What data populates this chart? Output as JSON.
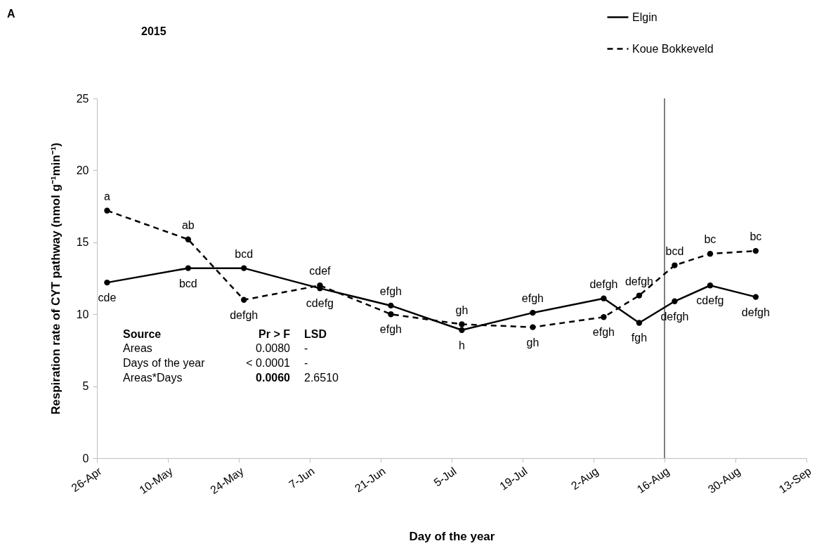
{
  "chart_data": {
    "type": "line",
    "title": "2015",
    "xlabel": "Day of the year",
    "ylabel": "Respiration rate of CYT pathway (nmol g⁻¹min⁻¹)",
    "x": [
      "2015-04-28",
      "2015-05-14",
      "2015-05-25",
      "2015-06-09",
      "2015-06-23",
      "2015-07-07",
      "2015-07-21",
      "2015-08-04",
      "2015-08-11",
      "2015-08-18",
      "2015-08-25",
      "2015-09-03"
    ],
    "series": [
      {
        "name": "Elgin",
        "color": "#000000",
        "line_style": "solid",
        "values": [
          12.2,
          13.2,
          13.2,
          11.8,
          10.6,
          8.9,
          10.1,
          11.1,
          9.4,
          10.9,
          12.0,
          11.2
        ]
      },
      {
        "name": "Koue Bokkeveld",
        "color": "#000000",
        "line_style": "dashed",
        "values": [
          17.2,
          15.2,
          11.0,
          12.0,
          10.0,
          9.3,
          9.1,
          9.8,
          11.3,
          13.4,
          14.2,
          14.4
        ]
      }
    ],
    "marker": "circle",
    "legend": "top right",
    "grid": false,
    "ylim": [
      0,
      25
    ],
    "yticks": [
      0,
      5,
      10,
      15,
      20,
      25
    ],
    "xlim": [
      "2015-04-26",
      "2015-09-13"
    ],
    "xticks": [
      {
        "value": "2015-04-26",
        "label": "26-Apr"
      },
      {
        "value": "2015-05-10",
        "label": "10-May"
      },
      {
        "value": "2015-05-24",
        "label": "24-May"
      },
      {
        "value": "2015-06-07",
        "label": "7-Jun"
      },
      {
        "value": "2015-06-21",
        "label": "21-Jun"
      },
      {
        "value": "2015-07-05",
        "label": "5-Jul"
      },
      {
        "value": "2015-07-19",
        "label": "19-Jul"
      },
      {
        "value": "2015-08-02",
        "label": "2-Aug"
      },
      {
        "value": "2015-08-16",
        "label": "16-Aug"
      },
      {
        "value": "2015-08-30",
        "label": "30-Aug"
      },
      {
        "value": "2015-09-13",
        "label": "13-Sep"
      }
    ],
    "ref_lines": [
      {
        "axis": "x",
        "value": "2015-08-16",
        "color": "#000000"
      }
    ],
    "annotations": [
      "A",
      "Source",
      "Pr > F",
      "LSD",
      "Areas",
      "0.0080",
      "-",
      "Days of the year",
      "< 0.0001",
      "-",
      "Areas*Days",
      "0.0060",
      "2.6510",
      {
        "text": "cde",
        "x": "2015-04-28",
        "y": 12.2
      },
      {
        "text": "bcd",
        "x": "2015-05-14",
        "y": 13.2
      },
      {
        "text": "bcd",
        "x": "2015-05-25",
        "y": 13.2
      },
      {
        "text": "cdefg",
        "x": "2015-06-09",
        "y": 11.8
      },
      {
        "text": "efgh",
        "x": "2015-06-23",
        "y": 10.6
      },
      {
        "text": "h",
        "x": "2015-07-07",
        "y": 8.9
      },
      {
        "text": "efgh",
        "x": "2015-07-21",
        "y": 10.1
      },
      {
        "text": "defgh",
        "x": "2015-08-04",
        "y": 11.1
      },
      {
        "text": "fgh",
        "x": "2015-08-11",
        "y": 9.4
      },
      {
        "text": "defgh",
        "x": "2015-08-18",
        "y": 10.9
      },
      {
        "text": "cdefg",
        "x": "2015-08-25",
        "y": 12.0
      },
      {
        "text": "defgh",
        "x": "2015-09-03",
        "y": 11.2
      },
      {
        "text": "a",
        "x": "2015-04-28",
        "y": 17.2
      },
      {
        "text": "ab",
        "x": "2015-05-14",
        "y": 15.2
      },
      {
        "text": "defgh",
        "x": "2015-05-25",
        "y": 11.0
      },
      {
        "text": "cdef",
        "x": "2015-06-09",
        "y": 12.0
      },
      {
        "text": "efgh",
        "x": "2015-06-23",
        "y": 10.0
      },
      {
        "text": "gh",
        "x": "2015-07-07",
        "y": 9.3
      },
      {
        "text": "gh",
        "x": "2015-07-21",
        "y": 9.1
      },
      {
        "text": "efgh",
        "x": "2015-08-04",
        "y": 9.8
      },
      {
        "text": "defgh",
        "x": "2015-08-11",
        "y": 11.3
      },
      {
        "text": "bcd",
        "x": "2015-08-18",
        "y": 13.4
      },
      {
        "text": "bc",
        "x": "2015-08-25",
        "y": 14.2
      },
      {
        "text": "bc",
        "x": "2015-09-03",
        "y": 14.4
      }
    ]
  }
}
